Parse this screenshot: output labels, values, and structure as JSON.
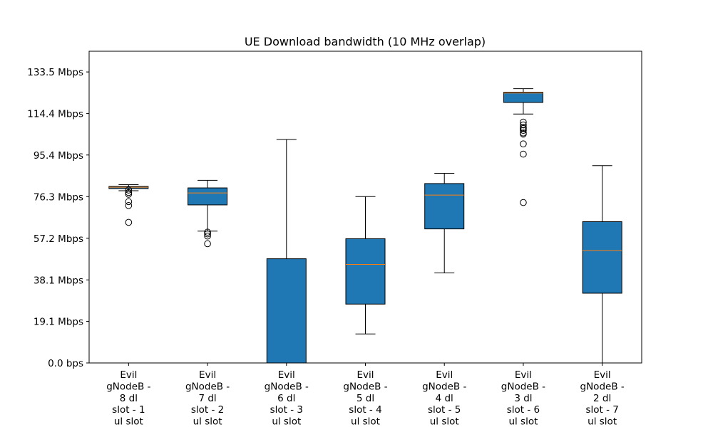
{
  "chart_data": {
    "type": "box",
    "title": "UE Download bandwidth (10 MHz overlap)",
    "xlabel": "",
    "ylabel": "",
    "ylim": [
      0,
      143
    ],
    "yticks": [
      {
        "value": 0.0,
        "label": "0.0 bps"
      },
      {
        "value": 19.1,
        "label": "19.1 Mbps"
      },
      {
        "value": 38.1,
        "label": "38.1 Mbps"
      },
      {
        "value": 57.2,
        "label": "57.2 Mbps"
      },
      {
        "value": 76.3,
        "label": "76.3 Mbps"
      },
      {
        "value": 95.4,
        "label": "95.4 Mbps"
      },
      {
        "value": 114.4,
        "label": "114.4 Mbps"
      },
      {
        "value": 133.5,
        "label": "133.5 Mbps"
      }
    ],
    "grid": false,
    "box_color": "#1f77b4",
    "median_color": "#ff7f0e",
    "categories": [
      [
        "Evil",
        "gNodeB -",
        "8 dl",
        "slot - 1",
        "ul slot"
      ],
      [
        "Evil",
        "gNodeB -",
        "7 dl",
        "slot - 2",
        "ul slot"
      ],
      [
        "Evil",
        "gNodeB -",
        "6 dl",
        "slot - 3",
        "ul slot"
      ],
      [
        "Evil",
        "gNodeB -",
        "5 dl",
        "slot - 4",
        "ul slot"
      ],
      [
        "Evil",
        "gNodeB -",
        "4 dl",
        "slot - 5",
        "ul slot"
      ],
      [
        "Evil",
        "gNodeB -",
        "3 dl",
        "slot - 6",
        "ul slot"
      ],
      [
        "Evil",
        "gNodeB -",
        "2 dl",
        "slot - 7",
        "ul slot"
      ]
    ],
    "boxes": [
      {
        "whisker_low": 79.0,
        "q1": 80.0,
        "median": 80.6,
        "q3": 81.0,
        "whisker_high": 81.8,
        "outliers": [
          79.3,
          78.2,
          77.4,
          74.0,
          72.2,
          64.5
        ]
      },
      {
        "whisker_low": 60.5,
        "q1": 72.5,
        "median": 78.0,
        "q3": 80.3,
        "whisker_high": 83.8,
        "outliers": [
          60.0,
          59.2,
          58.2,
          54.7
        ]
      },
      {
        "whisker_low": 0.0,
        "q1": 0.0,
        "median": 0.0,
        "q3": 47.8,
        "whisker_high": 102.5,
        "outliers": []
      },
      {
        "whisker_low": 13.3,
        "q1": 27.0,
        "median": 45.2,
        "q3": 57.0,
        "whisker_high": 76.3,
        "outliers": []
      },
      {
        "whisker_low": 41.3,
        "q1": 61.5,
        "median": 77.0,
        "q3": 82.3,
        "whisker_high": 87.0,
        "outliers": []
      },
      {
        "whisker_low": 114.2,
        "q1": 119.5,
        "median": 123.8,
        "q3": 124.2,
        "whisker_high": 125.8,
        "outliers": [
          110.5,
          109.2,
          108.0,
          107.5,
          106.7,
          105.5,
          105.0,
          100.5,
          95.8,
          73.6
        ]
      },
      {
        "whisker_low": 0.0,
        "q1": 32.0,
        "median": 51.5,
        "q3": 64.8,
        "whisker_high": 90.5,
        "outliers": []
      }
    ]
  }
}
